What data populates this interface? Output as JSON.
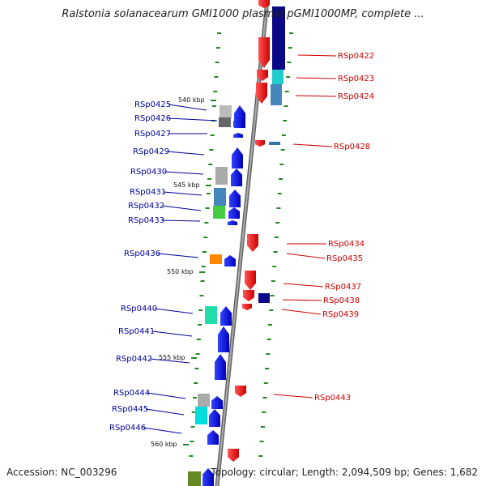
{
  "title": "Ralstonia solanacearum GMI1000 plasmid pGMI1000MP, complete ...",
  "footer": {
    "accession": "Accession: NC_003296",
    "topology": "Topology: circular; Length: 2,094,509 bp; Genes: 1,682"
  },
  "scale_ticks": [
    "540 kbp",
    "545 kbp",
    "550 kbp",
    "555 kbp",
    "560 kbp"
  ],
  "genes_right": [
    "RSp0422",
    "RSp0423",
    "RSp0424",
    "RSp0428",
    "RSp0434",
    "RSp0435",
    "RSp0437",
    "RSp0438",
    "RSp0439",
    "RSp0443"
  ],
  "genes_left": [
    "RSp0425",
    "RSp0426",
    "RSp0427",
    "RSp0429",
    "RSp0430",
    "RSp0431",
    "RSp0432",
    "RSp0433",
    "RSp0436",
    "RSp0440",
    "RSp0441",
    "RSp0442",
    "RSp0444",
    "RSp0445",
    "RSp0446"
  ],
  "colors": {
    "forward": "#ee1111",
    "reverse": "#1111ee",
    "backbone": "#8a8a8a",
    "right_label": "#cc0000",
    "left_label": "#000099",
    "dots": "#228822"
  }
}
